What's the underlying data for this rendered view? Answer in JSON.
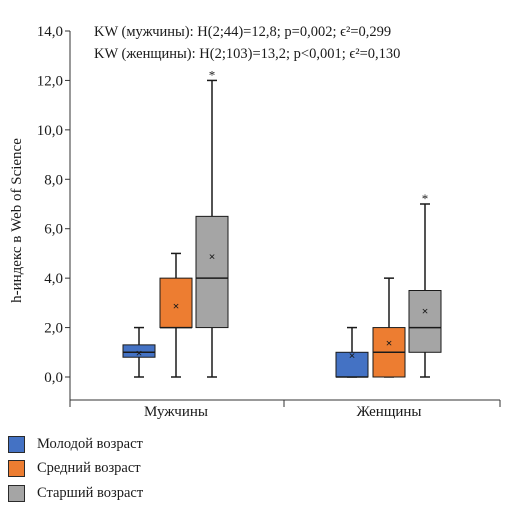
{
  "chart_data": {
    "type": "boxplot",
    "ylabel": "h-индекс в Web of Science",
    "xlabel": "",
    "ylim": [
      0,
      14
    ],
    "yticks": [
      0,
      2,
      4,
      6,
      8,
      10,
      12,
      14
    ],
    "ytick_labels": [
      "0,0",
      "2,0",
      "4,0",
      "6,0",
      "8,0",
      "10,0",
      "12,0",
      "14,0"
    ],
    "categories": [
      "Мужчины",
      "Женщины"
    ],
    "annotations": [
      "KW (мужчины): H(2;44)=12,8; p=0,002; ϵ²=0,299",
      "KW (женщины): H(2;103)=13,2; p<0,001; ϵ²=0,130"
    ],
    "outlier_marker": "*",
    "mean_marker": "×",
    "legend_position": "bottom-left",
    "series": [
      {
        "name": "Молодой возраст",
        "color": "#4472c4",
        "boxes": [
          {
            "min": 0,
            "q1": 0.8,
            "median": 1,
            "q3": 1.3,
            "max": 2,
            "mean": 1.0,
            "outliers": []
          },
          {
            "min": 0,
            "q1": 0,
            "median": 0,
            "q3": 1,
            "max": 2,
            "mean": 0.9,
            "outliers": []
          }
        ]
      },
      {
        "name": "Средний возраст",
        "color": "#ed7d31",
        "boxes": [
          {
            "min": 0,
            "q1": 2,
            "median": 2,
            "q3": 4,
            "max": 5,
            "mean": 2.9,
            "outliers": []
          },
          {
            "min": 0,
            "q1": 0,
            "median": 1,
            "q3": 2,
            "max": 4,
            "mean": 1.4,
            "outliers": []
          }
        ]
      },
      {
        "name": "Старший возраст",
        "color": "#a5a5a5",
        "boxes": [
          {
            "min": 0,
            "q1": 2,
            "median": 4,
            "q3": 6.5,
            "max": 12,
            "mean": 4.9,
            "outliers": [
              12
            ]
          },
          {
            "min": 0,
            "q1": 1,
            "median": 2,
            "q3": 3.5,
            "max": 7,
            "mean": 2.7,
            "outliers": [
              7
            ]
          }
        ]
      }
    ]
  }
}
